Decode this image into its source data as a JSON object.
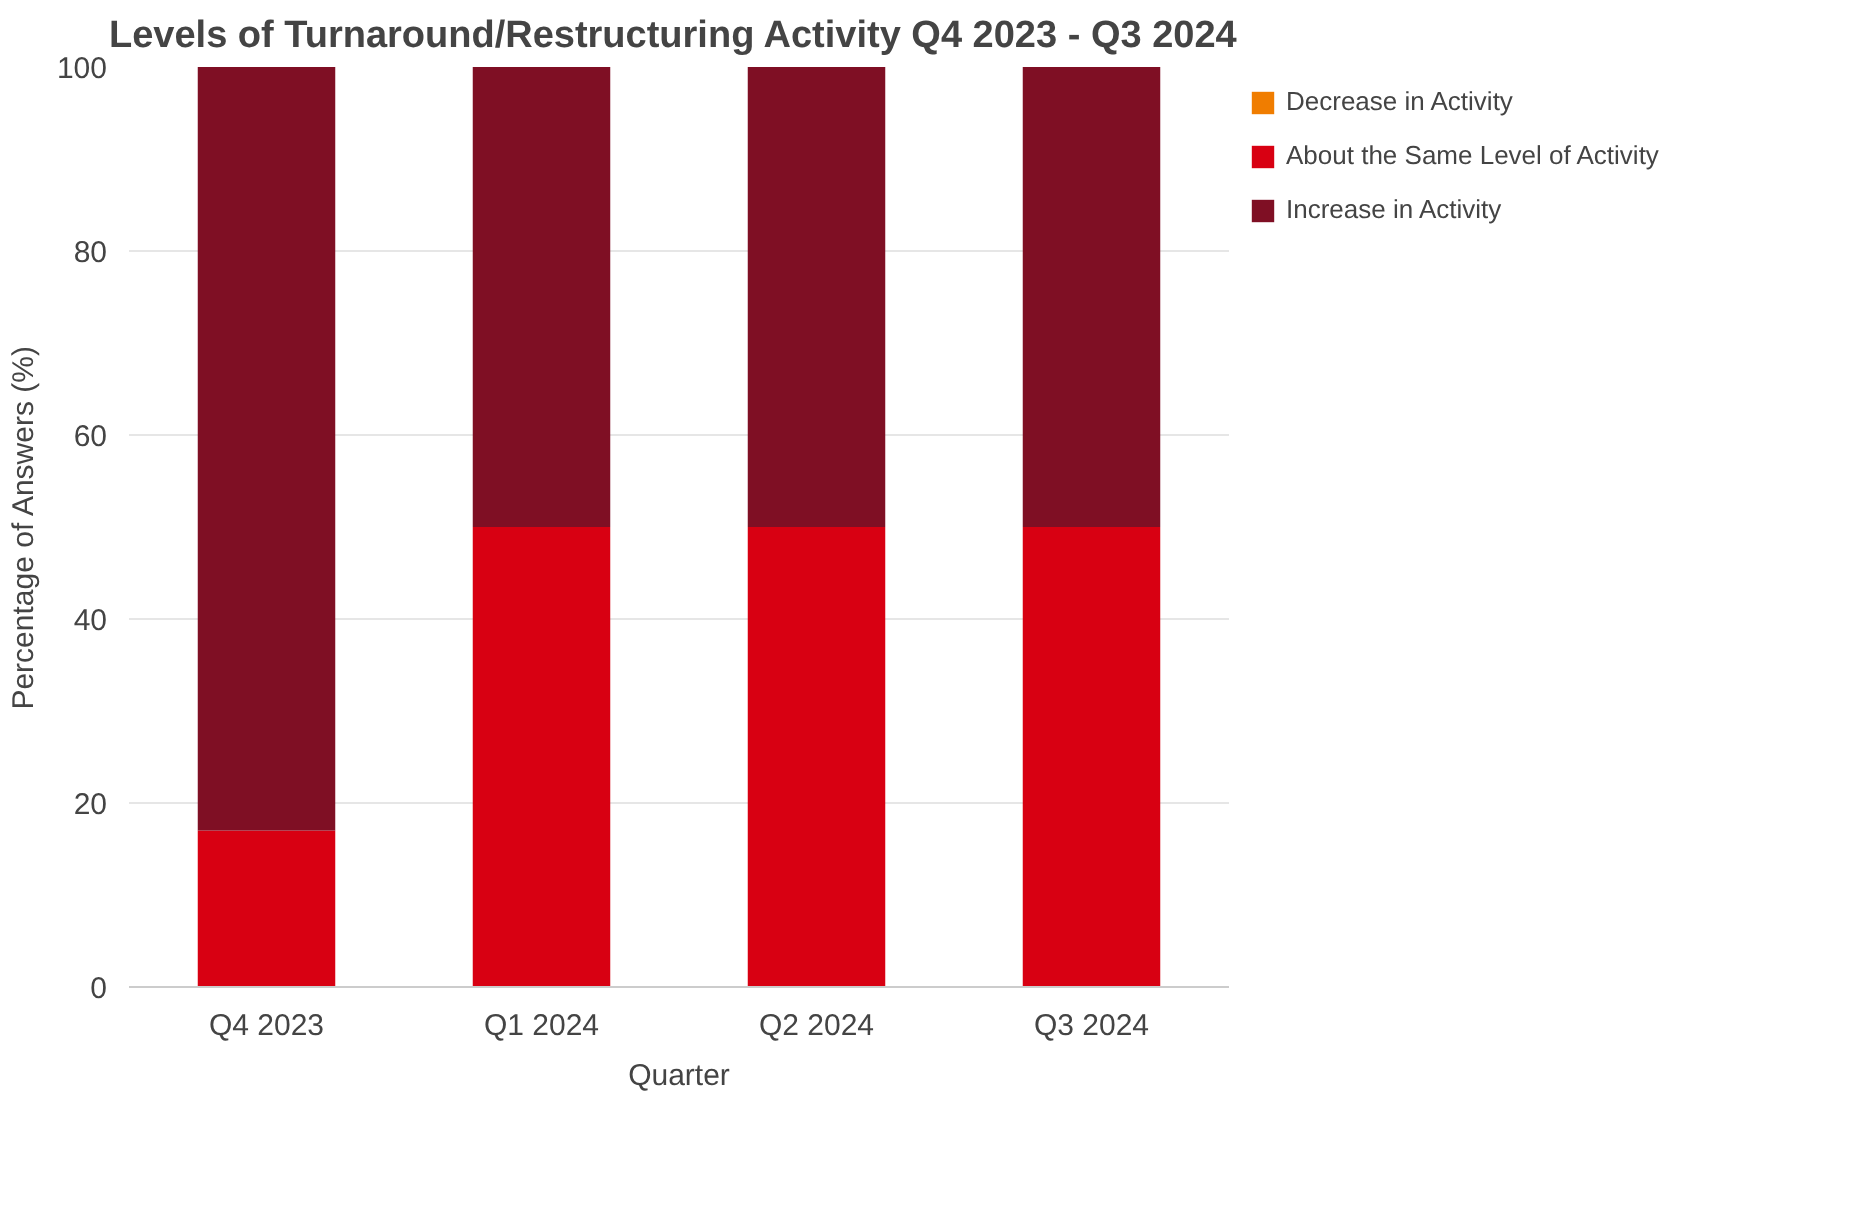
{
  "chart_data": {
    "type": "bar",
    "title": "Levels of Turnaround/Restructuring Activity Q4 2023 - Q3 2024",
    "xlabel": "Quarter",
    "ylabel": "Percentage of Answers (%)",
    "categories": [
      "Q4 2023",
      "Q1 2024",
      "Q2 2024",
      "Q3 2024"
    ],
    "stacked": true,
    "series": [
      {
        "name": "Decrease in Activity",
        "color": "#f07d00",
        "values": [
          0,
          0,
          0,
          0
        ]
      },
      {
        "name": "About the Same Level of Activity",
        "color": "#d80012",
        "values": [
          17,
          50,
          50,
          50
        ]
      },
      {
        "name": "Increase in Activity",
        "color": "#7f0f24",
        "values": [
          83,
          50,
          50,
          50
        ]
      }
    ],
    "ylim": [
      0,
      100
    ],
    "yticks": [
      0,
      20,
      40,
      60,
      80,
      100
    ],
    "grid": "y",
    "legend": "right"
  }
}
